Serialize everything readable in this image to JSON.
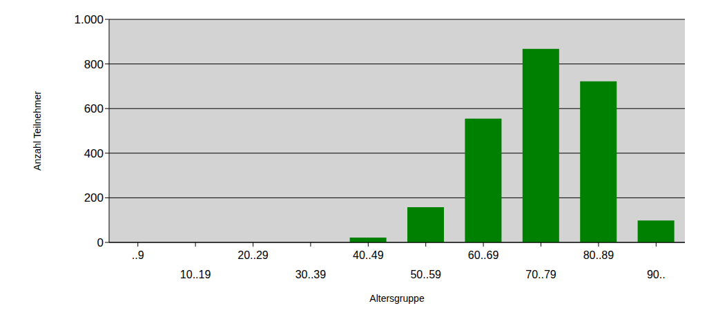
{
  "chart_data": {
    "type": "bar",
    "x_label": "Altersgruppe",
    "y_label": "Anzahl Teilnehmer",
    "categories": [
      "..9",
      "10..19",
      "20..29",
      "30..39",
      "40..49",
      "50..59",
      "60..69",
      "70..79",
      "80..89",
      "90.."
    ],
    "values": [
      0,
      0,
      0,
      0,
      22,
      158,
      555,
      868,
      722,
      98
    ],
    "color": "#008000",
    "ylim": [
      0,
      1000
    ],
    "yticks": [
      0,
      200,
      400,
      600,
      800,
      {
        "value": 1000,
        "label": "1.000"
      }
    ],
    "grid": true
  }
}
